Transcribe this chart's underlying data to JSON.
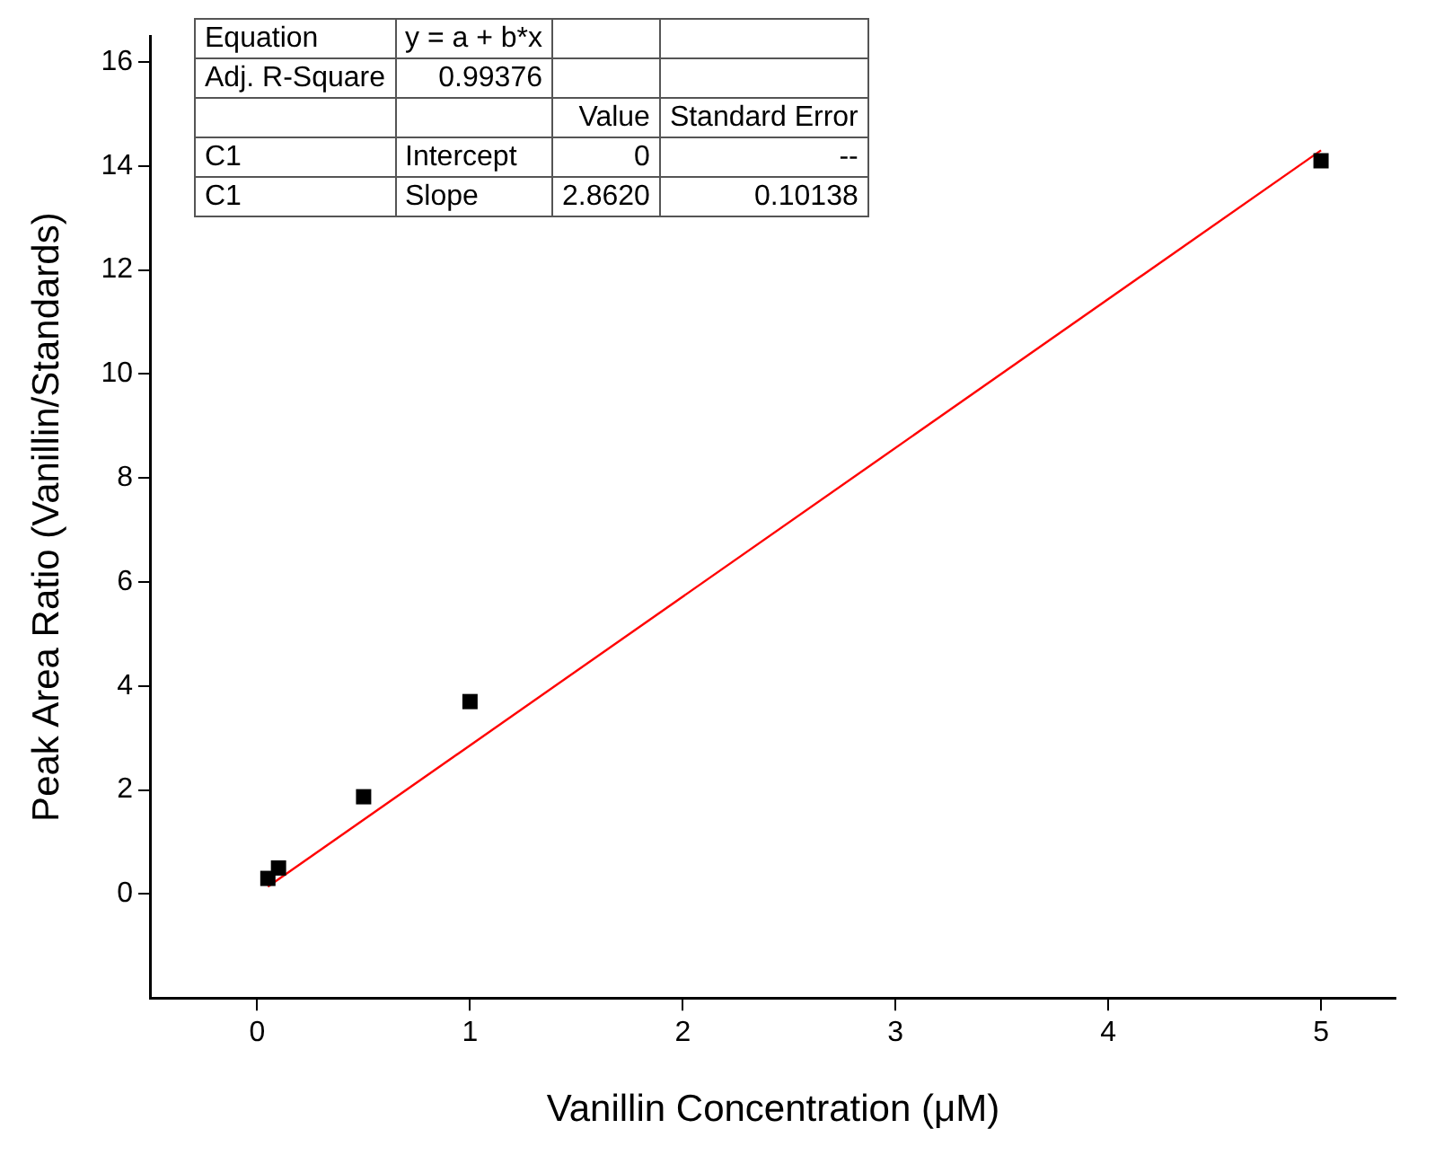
{
  "chart_data": {
    "type": "scatter",
    "xlabel": "Vanillin Concentration (μM)",
    "ylabel": "Peak Area Ratio (Vanillin/Standards)",
    "xlim": [
      -0.5,
      5.35
    ],
    "xticks": [
      0,
      1,
      2,
      3,
      4,
      5
    ],
    "ylim": [
      -2,
      16.5
    ],
    "yticks": [
      0,
      2,
      4,
      6,
      8,
      10,
      12,
      14,
      16
    ],
    "grid": false,
    "legend": false,
    "marker": "square",
    "series": [
      {
        "color": "#000000",
        "x": [
          0.05,
          0.1,
          0.5,
          1,
          5
        ],
        "values": [
          0.3,
          0.5,
          1.87,
          3.7,
          14.1
        ]
      },
      {
        "type": "line",
        "color": "#ff0000",
        "marker": "none",
        "x": [
          0.05,
          5
        ],
        "values": [
          0.14,
          14.3
        ]
      }
    ],
    "annotations": [
      "Equation\ty = a + b*x\t\t",
      "Adj. R-Square\t0.99376\t\t",
      "\t\tValue\tStandard Error",
      "C1\tIntercept\t0\t--",
      "C1\tSlope\t2.8620\t0.10138"
    ]
  }
}
